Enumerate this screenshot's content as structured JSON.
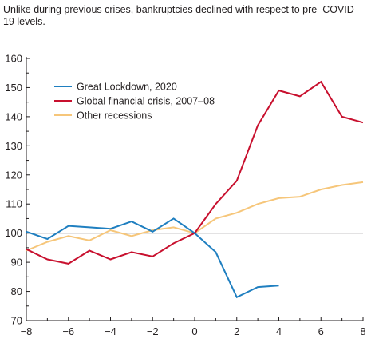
{
  "subtitle": "Unlike during previous crises, bankruptcies declined with respect to pre–COVID-19 levels.",
  "chart_data": {
    "type": "line",
    "x": [
      -8,
      -7,
      -6,
      -5,
      -4,
      -3,
      -2,
      -1,
      0,
      1,
      2,
      3,
      4,
      5,
      6,
      7,
      8
    ],
    "xlim": [
      -8,
      8
    ],
    "ylim": [
      70,
      160
    ],
    "x_ticks": [
      -8,
      -6,
      -4,
      -2,
      0,
      2,
      4,
      6,
      8
    ],
    "y_ticks": [
      70,
      80,
      90,
      100,
      110,
      120,
      130,
      140,
      150,
      160
    ],
    "x_tick_labels": [
      "−8",
      "−6",
      "−4",
      "−2",
      "0",
      "2",
      "4",
      "6",
      "8"
    ],
    "reference_line": 100,
    "legend_position": "top-left",
    "grid": false,
    "series": [
      {
        "name": "Great Lockdown, 2020",
        "color": "#1f7fc0",
        "values": [
          100.5,
          98,
          102.5,
          102,
          101.5,
          104,
          100.5,
          105,
          100,
          93.5,
          78,
          81.5,
          82,
          null,
          null,
          null,
          null
        ]
      },
      {
        "name": "Global financial crisis, 2007–08",
        "color": "#c8102e",
        "values": [
          94.5,
          91,
          89.5,
          94,
          91,
          93.5,
          92,
          96.5,
          100,
          110,
          118,
          137,
          149,
          147,
          152,
          140,
          138
        ]
      },
      {
        "name": "Other recessions",
        "color": "#f6c67a",
        "values": [
          94,
          97,
          99,
          97.5,
          101,
          99,
          101,
          102,
          100,
          105,
          107,
          110,
          112,
          112.5,
          115,
          116.5,
          117.5
        ]
      }
    ]
  }
}
